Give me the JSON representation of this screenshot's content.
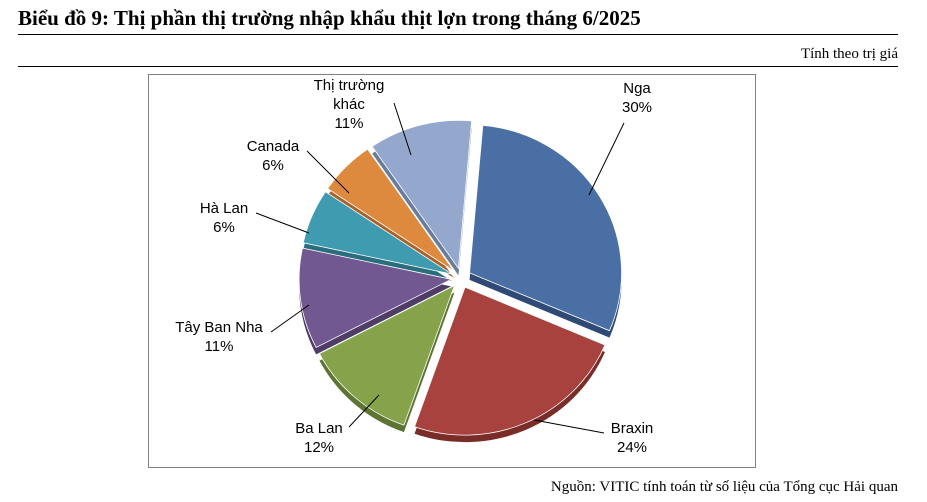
{
  "title": "Biểu đồ 9: Thị phần thị trường nhập khẩu thịt lợn trong tháng 6/2025",
  "unit_note": "Tính theo trị giá",
  "source": "Nguồn: VITIC tính toán từ số liệu của Tổng cục Hải quan",
  "chart_data": {
    "type": "pie",
    "exploded": true,
    "style": "3d",
    "slices": [
      {
        "label_lines": [
          "Nga"
        ],
        "value": 30,
        "value_label": "30%",
        "color": "#4a6fa5",
        "dark": "#2e4a75"
      },
      {
        "label_lines": [
          "Braxin"
        ],
        "value": 24,
        "value_label": "24%",
        "color": "#a8423e",
        "dark": "#7a2c29"
      },
      {
        "label_lines": [
          "Ba Lan"
        ],
        "value": 12,
        "value_label": "12%",
        "color": "#86a24a",
        "dark": "#5d7432"
      },
      {
        "label_lines": [
          "Tây Ban Nha"
        ],
        "value": 11,
        "value_label": "11%",
        "color": "#725891",
        "dark": "#4f3d66"
      },
      {
        "label_lines": [
          "Hà Lan"
        ],
        "value": 6,
        "value_label": "6%",
        "color": "#3f9bb0",
        "dark": "#2a6d7c"
      },
      {
        "label_lines": [
          "Canada"
        ],
        "value": 6,
        "value_label": "6%",
        "color": "#dd8a3e",
        "dark": "#a8622a"
      },
      {
        "label_lines": [
          "Thị trường",
          "khác"
        ],
        "value": 11,
        "value_label": "11%",
        "color": "#93a8cc",
        "dark": "#6a7c9c"
      }
    ]
  }
}
